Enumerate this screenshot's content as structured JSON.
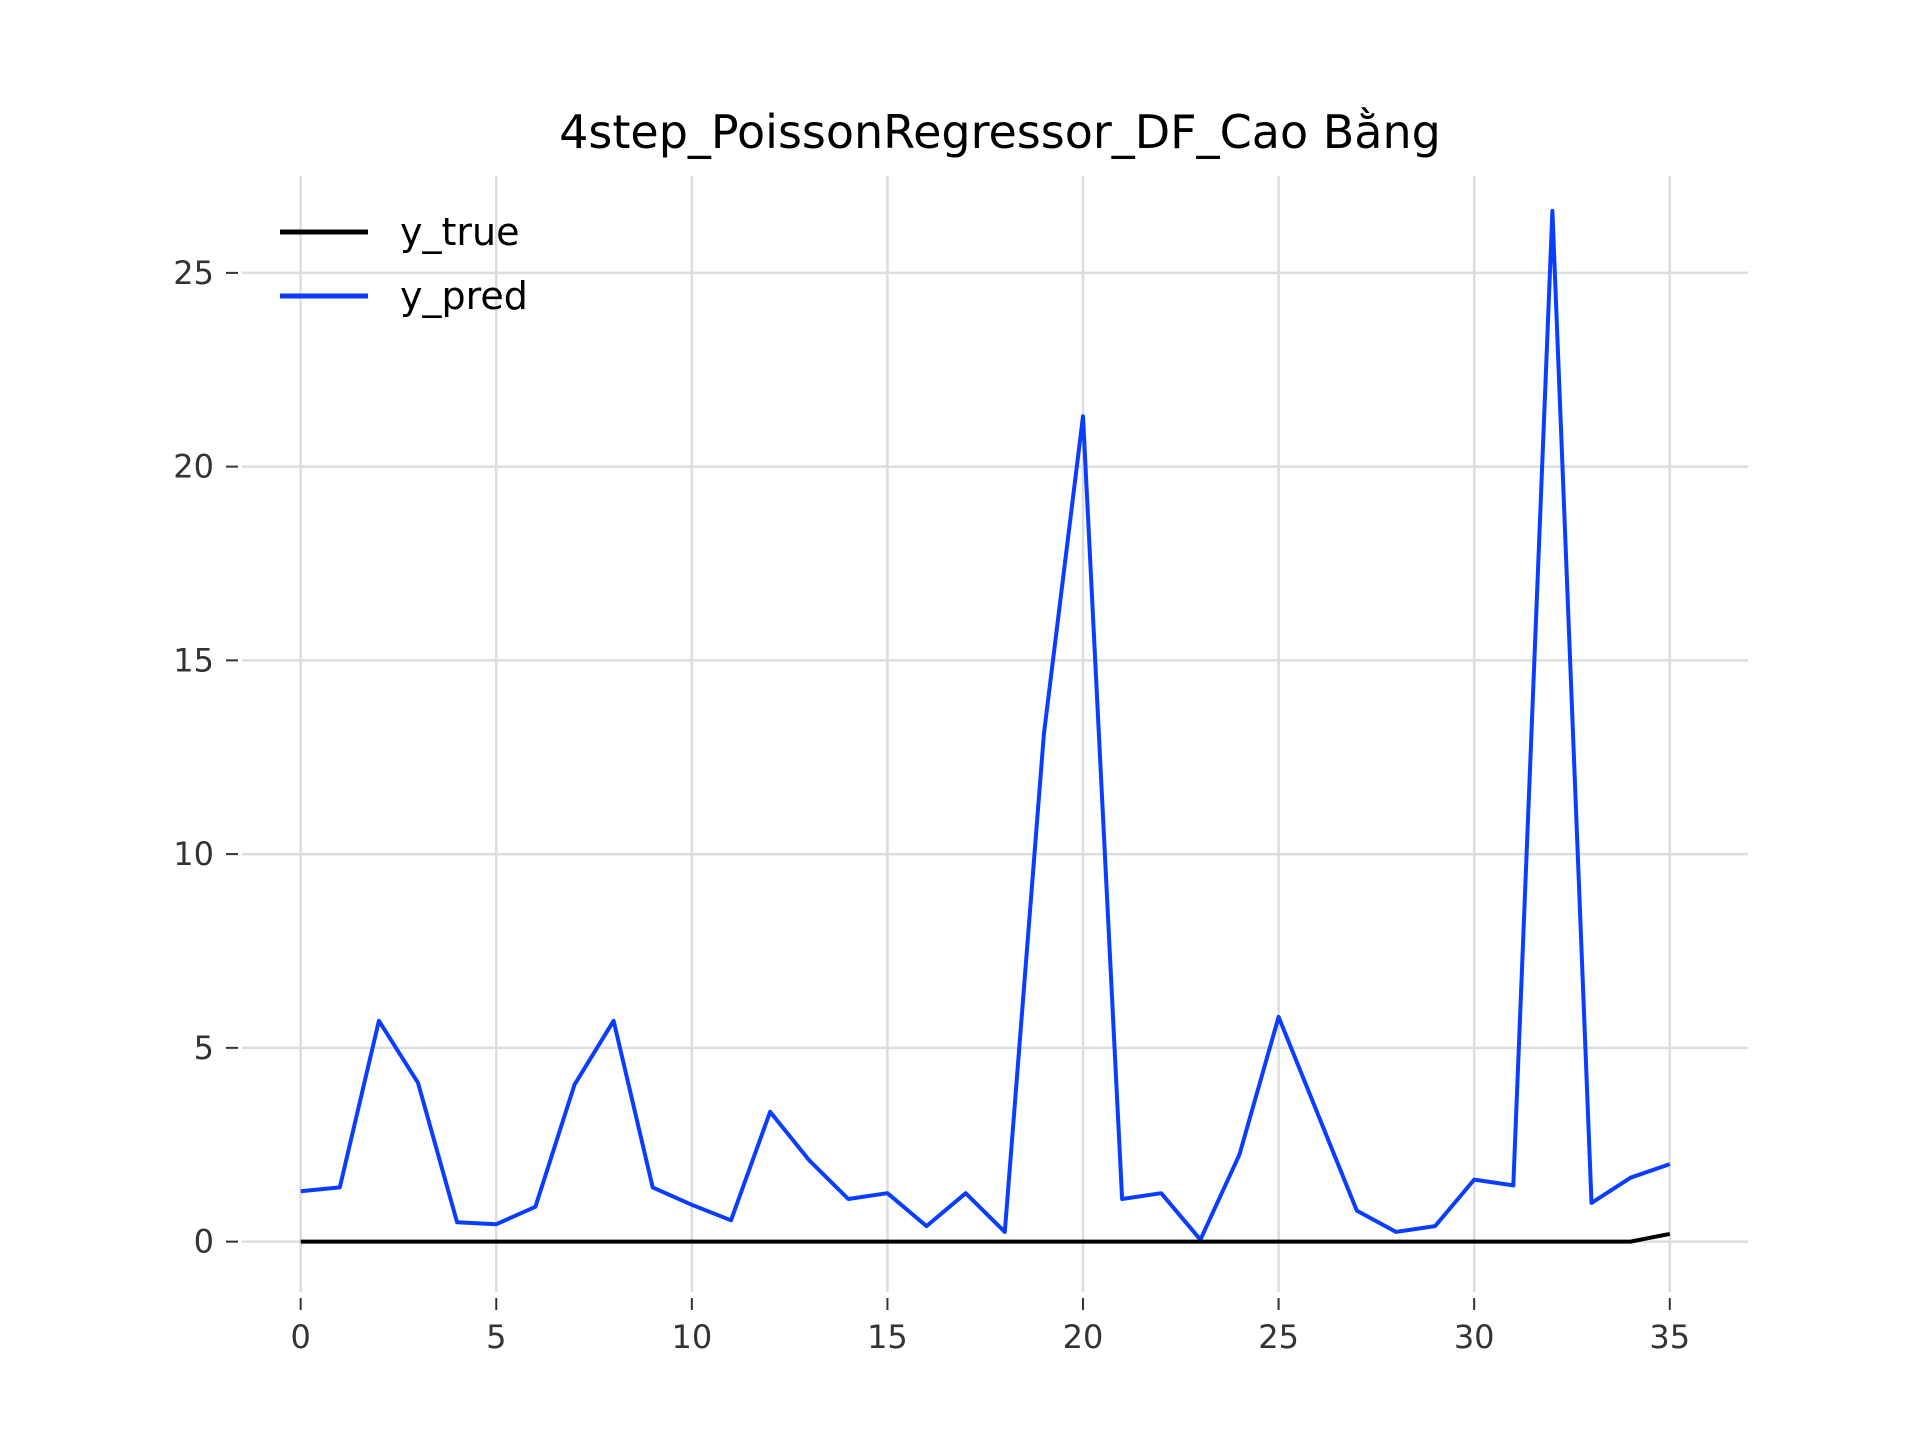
{
  "chart_data": {
    "type": "line",
    "title": "4step_PoissonRegressor_DF_Cao Bằng",
    "xlabel": "",
    "ylabel": "",
    "xlim": [
      -1.5,
      37
    ],
    "ylim": [
      -1.3,
      27.5
    ],
    "xticks": [
      0,
      5,
      10,
      15,
      20,
      25,
      30,
      35
    ],
    "yticks": [
      0,
      5,
      10,
      15,
      20,
      25
    ],
    "grid": true,
    "legend_position": "top-left",
    "x": [
      0,
      1,
      2,
      3,
      4,
      5,
      6,
      7,
      8,
      9,
      10,
      11,
      12,
      13,
      14,
      15,
      16,
      17,
      18,
      19,
      20,
      21,
      22,
      23,
      24,
      25,
      26,
      27,
      28,
      29,
      30,
      31,
      32,
      33,
      34,
      35
    ],
    "series": [
      {
        "name": "y_true",
        "color": "#000000",
        "values": [
          0,
          0,
          0,
          0,
          0,
          0,
          0,
          0,
          0,
          0,
          0,
          0,
          0,
          0,
          0,
          0,
          0,
          0,
          0,
          0,
          0,
          0,
          0,
          0,
          0,
          0,
          0,
          0,
          0,
          0,
          0,
          0,
          0,
          0,
          0,
          0.2
        ]
      },
      {
        "name": "y_pred",
        "color": "#0a3dff",
        "values": [
          1.3,
          1.4,
          5.7,
          4.1,
          0.5,
          0.45,
          0.9,
          4.05,
          5.7,
          1.4,
          0.95,
          0.55,
          3.35,
          2.1,
          1.1,
          1.25,
          0.4,
          1.25,
          0.25,
          13.1,
          21.3,
          1.1,
          1.25,
          0.05,
          2.25,
          5.8,
          3.3,
          0.8,
          0.25,
          0.4,
          1.6,
          1.45,
          26.6,
          1.0,
          1.65,
          2.0
        ]
      }
    ]
  }
}
